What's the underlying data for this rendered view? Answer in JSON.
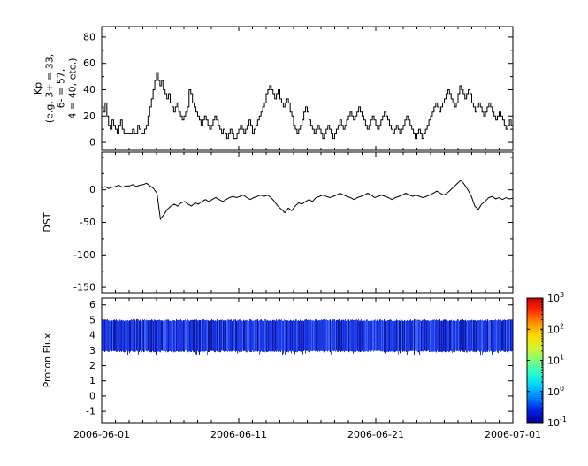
{
  "figure": {
    "background": "#ffffff",
    "description": "Three stacked geomagnetic/space-weather time-series panels sharing a common time axis"
  },
  "chart_data": [
    {
      "type": "line",
      "name": "kp-index",
      "line_style": "step",
      "line_color": "#000000",
      "ylabel_lines": [
        "Kp",
        "(e.g. 3+ = 33,",
        "6- = 57,",
        "4 = 40, etc.)"
      ],
      "ylim": [
        -6,
        88
      ],
      "yticks": [
        0,
        20,
        40,
        60,
        80
      ],
      "yticks_minor": [
        10,
        30,
        50,
        70
      ],
      "x_start": "2006-06-01",
      "x_end": "2006-07-01",
      "values": [
        27,
        23,
        30,
        20,
        13,
        10,
        17,
        13,
        10,
        7,
        13,
        17,
        10,
        7,
        7,
        7,
        7,
        7,
        10,
        7,
        7,
        13,
        10,
        7,
        7,
        10,
        13,
        20,
        27,
        33,
        40,
        47,
        53,
        47,
        43,
        47,
        40,
        37,
        33,
        37,
        30,
        27,
        23,
        27,
        30,
        23,
        20,
        17,
        20,
        23,
        27,
        40,
        37,
        30,
        27,
        23,
        20,
        17,
        13,
        17,
        20,
        17,
        13,
        10,
        13,
        17,
        20,
        17,
        13,
        10,
        7,
        10,
        7,
        3,
        7,
        10,
        7,
        3,
        3,
        7,
        10,
        13,
        10,
        7,
        10,
        13,
        17,
        13,
        7,
        10,
        13,
        17,
        20,
        23,
        27,
        30,
        37,
        40,
        43,
        40,
        37,
        33,
        37,
        40,
        33,
        30,
        27,
        30,
        33,
        30,
        23,
        20,
        13,
        10,
        7,
        10,
        13,
        17,
        23,
        27,
        23,
        17,
        13,
        10,
        7,
        10,
        13,
        10,
        7,
        3,
        7,
        10,
        13,
        10,
        7,
        3,
        7,
        10,
        13,
        17,
        13,
        10,
        13,
        17,
        20,
        23,
        20,
        17,
        20,
        23,
        27,
        23,
        20,
        17,
        13,
        10,
        13,
        17,
        20,
        17,
        13,
        10,
        13,
        17,
        20,
        23,
        20,
        17,
        13,
        10,
        7,
        10,
        13,
        10,
        7,
        10,
        13,
        17,
        20,
        17,
        13,
        10,
        7,
        3,
        7,
        10,
        7,
        3,
        7,
        10,
        13,
        17,
        20,
        23,
        27,
        30,
        27,
        23,
        27,
        30,
        33,
        37,
        40,
        37,
        33,
        30,
        27,
        30,
        37,
        43,
        40,
        37,
        33,
        37,
        40,
        37,
        30,
        27,
        23,
        27,
        30,
        27,
        23,
        20,
        23,
        27,
        30,
        27,
        23,
        20,
        17,
        20,
        23,
        20,
        17,
        13,
        10,
        13,
        17,
        13
      ]
    },
    {
      "type": "line",
      "name": "dst-index",
      "line_color": "#000000",
      "ylabel": "DST",
      "ylim": [
        -158,
        58
      ],
      "yticks": [
        0,
        -50,
        -100,
        -150
      ],
      "yticks_minor": [
        50,
        25,
        -25,
        -75,
        -125
      ],
      "x_start": "2006-06-01",
      "x_end": "2006-07-01",
      "values": [
        3,
        5,
        2,
        4,
        5,
        7,
        4,
        6,
        6,
        8,
        5,
        7,
        8,
        10,
        6,
        2,
        -5,
        -45,
        -38,
        -30,
        -25,
        -22,
        -25,
        -20,
        -18,
        -22,
        -25,
        -20,
        -22,
        -18,
        -15,
        -18,
        -15,
        -12,
        -15,
        -18,
        -15,
        -12,
        -10,
        -12,
        -10,
        -8,
        -12,
        -15,
        -12,
        -10,
        -8,
        -10,
        -8,
        -12,
        -18,
        -25,
        -30,
        -35,
        -28,
        -32,
        -25,
        -20,
        -22,
        -18,
        -15,
        -18,
        -12,
        -10,
        -8,
        -10,
        -12,
        -10,
        -8,
        -5,
        -8,
        -10,
        -12,
        -15,
        -12,
        -10,
        -8,
        -5,
        -8,
        -12,
        -10,
        -8,
        -10,
        -12,
        -15,
        -12,
        -10,
        -8,
        -5,
        -8,
        -10,
        -8,
        -10,
        -12,
        -10,
        -8,
        -5,
        -2,
        -5,
        -8,
        -5,
        0,
        5,
        10,
        15,
        8,
        0,
        -10,
        -25,
        -30,
        -22,
        -18,
        -12,
        -10,
        -14,
        -12,
        -15,
        -12,
        -14,
        -13
      ]
    },
    {
      "type": "heatmap",
      "name": "proton-flux",
      "ylabel": "Proton Flux",
      "ylim": [
        -1.75,
        6.45
      ],
      "yticks": [
        -1,
        0,
        1,
        2,
        3,
        4,
        5,
        6
      ],
      "x_start": "2006-06-01",
      "x_end": "2006-07-01",
      "xtick_labels": [
        "2006-06-01",
        "2006-06-11",
        "2006-06-21",
        "2006-07-01"
      ],
      "band": {
        "y_bottom": 3,
        "y_top": 5,
        "approx_flux_value": 0.1,
        "stripe_colors": [
          "#1530d8",
          "#2445ee",
          "#0c20b4",
          "#3c63f5",
          "#1a38e0",
          "#0a1ba0",
          "#2038e8"
        ]
      }
    }
  ],
  "colorbar": {
    "scale": "log",
    "tick_labels_top_to_bottom": [
      "10^3",
      "10^2",
      "10^1",
      "10^0",
      "10^-1"
    ],
    "gradient_top_to_bottom": [
      "#c80000",
      "#ff2a00",
      "#ff9000",
      "#ffd900",
      "#d4f32c",
      "#7dff77",
      "#2cffc8",
      "#00d4ff",
      "#0080ff",
      "#0020e8",
      "#000090"
    ]
  }
}
